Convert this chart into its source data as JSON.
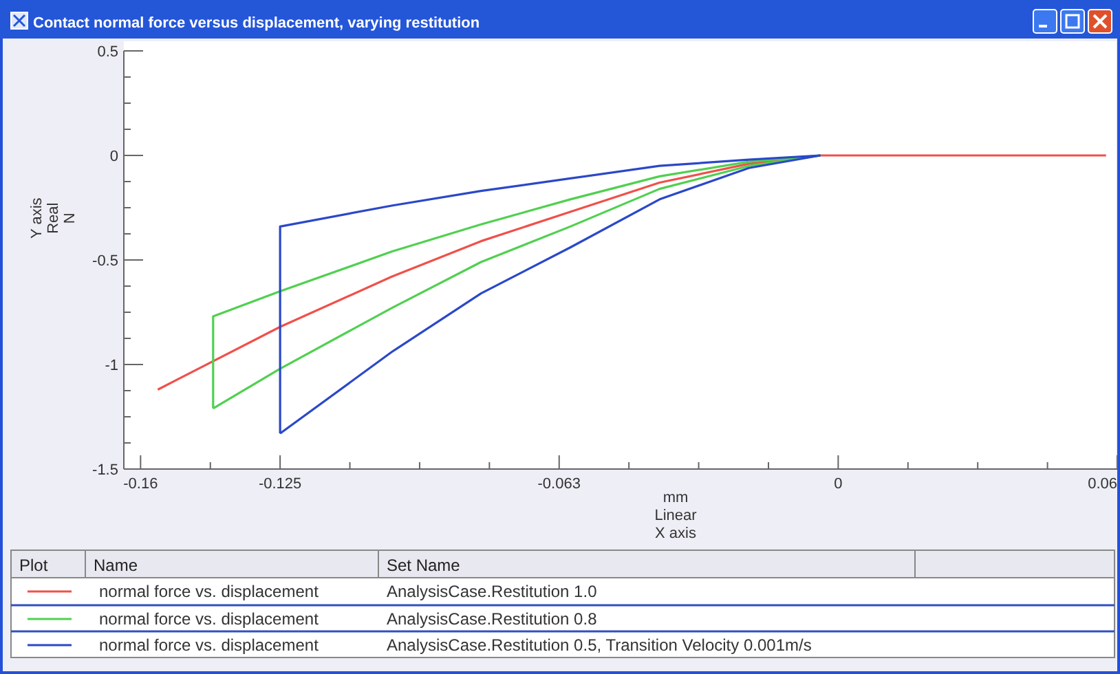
{
  "chart_data": {
    "type": "line",
    "title": "Contact normal force versus displacement, varying restitution",
    "xlabel": "mm\nLinear\nX axis",
    "ylabel": "Y axis\nReal\nN",
    "xlim": [
      -0.16,
      0.0625
    ],
    "ylim": [
      -1.5,
      0.5
    ],
    "xticks": [
      {
        "value": -0.15625,
        "label": "-0.16"
      },
      {
        "value": -0.140625,
        "label": null
      },
      -0.125,
      {
        "value": -0.109375,
        "label": null
      },
      {
        "value": -0.09375,
        "label": null
      },
      {
        "value": -0.078125,
        "label": null
      },
      {
        "value": -0.0625,
        "label": "-0.063"
      },
      {
        "value": -0.046875,
        "label": null
      },
      {
        "value": -0.03125,
        "label": null
      },
      {
        "value": -0.015625,
        "label": null
      },
      0,
      {
        "value": 0.015625,
        "label": null
      },
      {
        "value": 0.03125,
        "label": null
      },
      {
        "value": 0.046875,
        "label": null
      },
      {
        "value": 0.0625,
        "label": "0.06"
      }
    ],
    "yticks": [
      0.5,
      {
        "value": 0.375,
        "label": null
      },
      {
        "value": 0.25,
        "label": null
      },
      {
        "value": 0.125,
        "label": null
      },
      0,
      {
        "value": -0.125,
        "label": null
      },
      {
        "value": -0.25,
        "label": null
      },
      {
        "value": -0.375,
        "label": null
      },
      -0.5,
      {
        "value": -0.625,
        "label": null
      },
      {
        "value": -0.75,
        "label": null
      },
      {
        "value": -0.875,
        "label": null
      },
      -1,
      {
        "value": -1.125,
        "label": null
      },
      {
        "value": -1.25,
        "label": null
      },
      {
        "value": -1.375,
        "label": null
      },
      -1.5
    ],
    "grid": false,
    "legend": "bottom",
    "line_style": "solid",
    "marker": "none",
    "legend_title": "Set Name",
    "annotations": [
      "Plot",
      "Name",
      "normal force vs. displacement",
      "normal force vs. displacement",
      "normal force vs. displacement"
    ],
    "series": [
      {
        "name": "AnalysisCase.Restitution 1.0",
        "color": "#f0504a",
        "x": [
          0.06,
          0,
          -0.004,
          -0.02,
          -0.04,
          -0.06,
          -0.08,
          -0.1,
          -0.125,
          -0.1524
        ],
        "values": [
          0,
          0,
          0,
          -0.04,
          -0.13,
          -0.27,
          -0.41,
          -0.58,
          -0.82,
          -1.12
        ]
      },
      {
        "name": "AnalysisCase.Restitution 0.8",
        "color": "#50d050",
        "x": [
          -0.004,
          -0.02,
          -0.04,
          -0.06,
          -0.08,
          -0.1,
          -0.125,
          -0.14
        ],
        "values": [
          0,
          -0.05,
          -0.16,
          -0.34,
          -0.51,
          -0.73,
          -1.02,
          -1.21
        ]
      },
      {
        "color": "#50d050",
        "x": [
          -0.14,
          -0.14,
          -0.125,
          -0.1,
          -0.08,
          -0.06,
          -0.04,
          -0.02,
          -0.004
        ],
        "values": [
          -1.21,
          -0.77,
          -0.65,
          -0.46,
          -0.33,
          -0.21,
          -0.1,
          -0.03,
          0
        ]
      },
      {
        "name": "AnalysisCase.Restitution 0.5, Transition Velocity 0.001m/s",
        "color": "#2a48c8",
        "x": [
          -0.004,
          -0.02,
          -0.04,
          -0.06,
          -0.08,
          -0.1,
          -0.125
        ],
        "values": [
          0,
          -0.06,
          -0.21,
          -0.44,
          -0.66,
          -0.94,
          -1.33
        ]
      },
      {
        "color": "#2a48c8",
        "x": [
          -0.125,
          -0.125,
          -0.1,
          -0.08,
          -0.06,
          -0.04,
          -0.02,
          -0.004
        ],
        "values": [
          -1.33,
          -0.34,
          -0.24,
          -0.17,
          -0.11,
          -0.05,
          -0.02,
          0
        ]
      }
    ]
  }
}
